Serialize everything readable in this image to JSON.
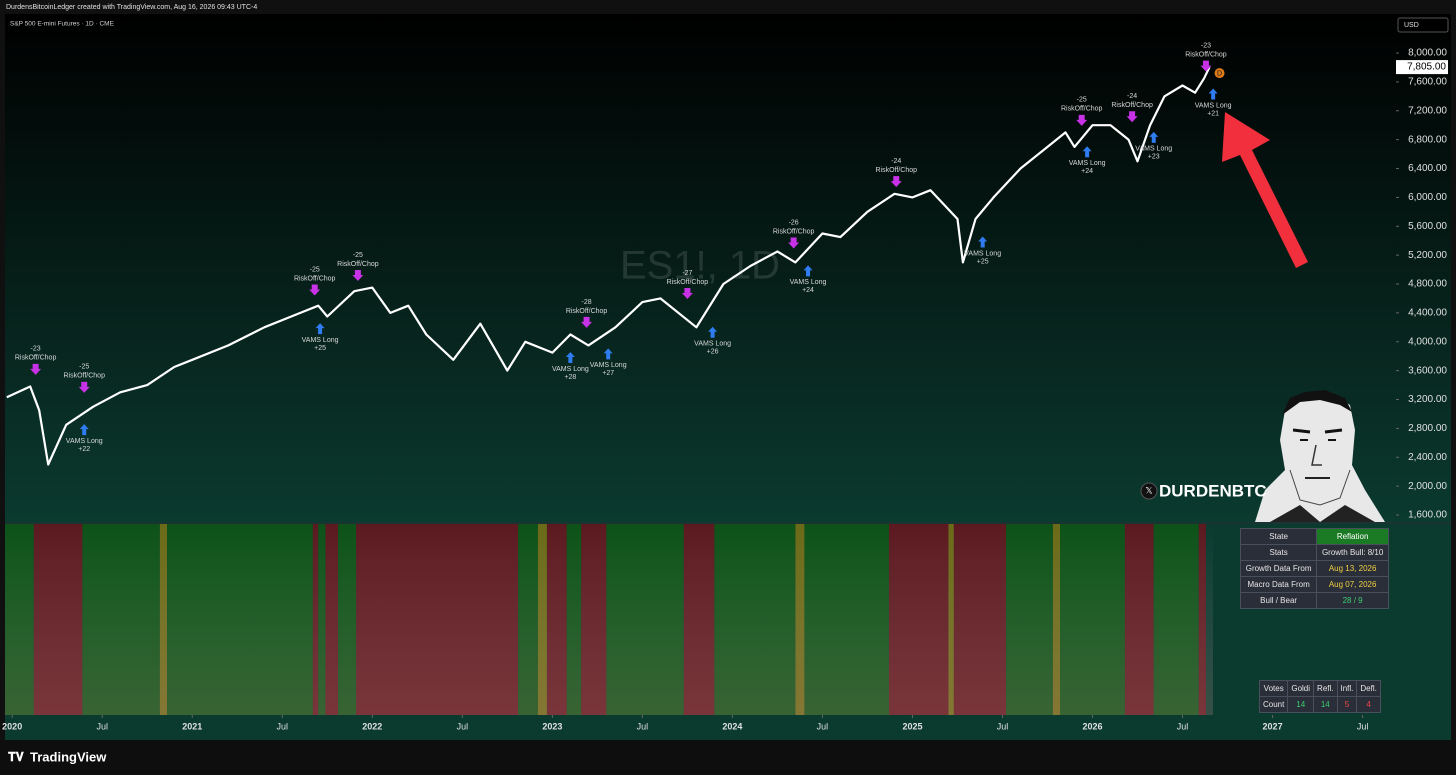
{
  "header": "DurdensBitcoinLedger created with TradingView.com, Aug 16, 2026 09:43 UTC-4",
  "brand": "TradingView",
  "handle": "DURDENBTC",
  "chart_data": {
    "type": "line",
    "title": "S&P 500 E-mini Futures · 1D · CME",
    "watermark": "ES1!, 1D",
    "currency": "USD",
    "color": "#ffffff",
    "x": [
      2019.97,
      2020.1,
      2020.15,
      2020.2,
      2020.3,
      2020.45,
      2020.6,
      2020.75,
      2020.9,
      2021.0,
      2021.2,
      2021.4,
      2021.6,
      2021.7,
      2021.75,
      2021.9,
      2022.0,
      2022.1,
      2022.2,
      2022.3,
      2022.45,
      2022.6,
      2022.75,
      2022.85,
      2023.0,
      2023.1,
      2023.2,
      2023.35,
      2023.5,
      2023.6,
      2023.8,
      2023.95,
      2024.1,
      2024.25,
      2024.35,
      2024.5,
      2024.6,
      2024.75,
      2024.9,
      2025.0,
      2025.1,
      2025.25,
      2025.28,
      2025.35,
      2025.45,
      2025.6,
      2025.75,
      2025.85,
      2025.9,
      2026.0,
      2026.1,
      2026.2,
      2026.25,
      2026.32,
      2026.4,
      2026.5,
      2026.57,
      2026.62,
      2026.65
    ],
    "values": [
      3230,
      3380,
      3050,
      2300,
      2850,
      3100,
      3300,
      3400,
      3650,
      3750,
      3950,
      4200,
      4400,
      4500,
      4350,
      4700,
      4750,
      4400,
      4500,
      4100,
      3750,
      4250,
      3600,
      4000,
      3850,
      4100,
      3950,
      4200,
      4550,
      4600,
      4200,
      4800,
      5050,
      5250,
      5100,
      5500,
      5450,
      5800,
      6050,
      6000,
      6100,
      5700,
      5100,
      5700,
      6000,
      6400,
      6700,
      6900,
      6700,
      7000,
      7000,
      6800,
      6500,
      7000,
      7400,
      7550,
      7450,
      7650,
      7805
    ],
    "last_price": {
      "value": 7805,
      "label": "7,805.00"
    },
    "badge": "D",
    "xlim": [
      2019.96,
      2027.68
    ],
    "ylim": [
      1503,
      8319
    ],
    "xticks": [
      {
        "value": 2020,
        "label": "2020"
      },
      {
        "value": 2020.5,
        "label": "Jul"
      },
      {
        "value": 2021,
        "label": "2021"
      },
      {
        "value": 2021.5,
        "label": "Jul"
      },
      {
        "value": 2022,
        "label": "2022"
      },
      {
        "value": 2022.5,
        "label": "Jul"
      },
      {
        "value": 2023,
        "label": "2023"
      },
      {
        "value": 2023.5,
        "label": "Jul"
      },
      {
        "value": 2024,
        "label": "2024"
      },
      {
        "value": 2024.5,
        "label": "Jul"
      },
      {
        "value": 2025,
        "label": "2025"
      },
      {
        "value": 2025.5,
        "label": "Jul"
      },
      {
        "value": 2026,
        "label": "2026"
      },
      {
        "value": 2026.5,
        "label": "Jul"
      },
      {
        "value": 2027,
        "label": "2027"
      },
      {
        "value": 2027.5,
        "label": "Jul"
      }
    ],
    "yticks": [
      {
        "value": 1600,
        "label": "1,600.00"
      },
      {
        "value": 2000,
        "label": "2,000.00"
      },
      {
        "value": 2400,
        "label": "2,400.00"
      },
      {
        "value": 2800,
        "label": "2,800.00"
      },
      {
        "value": 3200,
        "label": "3,200.00"
      },
      {
        "value": 3600,
        "label": "3,600.00"
      },
      {
        "value": 4000,
        "label": "4,000.00"
      },
      {
        "value": 4400,
        "label": "4,400.00"
      },
      {
        "value": 4800,
        "label": "4,800.00"
      },
      {
        "value": 5200,
        "label": "5,200.00"
      },
      {
        "value": 5600,
        "label": "5,600.00"
      },
      {
        "value": 6000,
        "label": "6,000.00"
      },
      {
        "value": 6400,
        "label": "6,400.00"
      },
      {
        "value": 6800,
        "label": "6,800.00"
      },
      {
        "value": 7200,
        "label": "7,200.00"
      },
      {
        "value": 7600,
        "label": "7,600.00"
      },
      {
        "value": 8000,
        "label": "8,000.00"
      }
    ],
    "signals": [
      {
        "x": 2020.13,
        "value": 3500,
        "label": "RiskOff/Chop",
        "score": "-23"
      },
      {
        "x": 2020.4,
        "value": 3250,
        "label": "RiskOff/Chop",
        "score": "-25"
      },
      {
        "x": 2020.4,
        "value": 2900,
        "label": "VAMS Long",
        "score": "+22"
      },
      {
        "x": 2021.68,
        "value": 4600,
        "label": "RiskOff/Chop",
        "score": "-25"
      },
      {
        "x": 2021.71,
        "value": 4300,
        "label": "VAMS Long",
        "score": "+25"
      },
      {
        "x": 2021.92,
        "value": 4800,
        "label": "RiskOff/Chop",
        "score": "-25"
      },
      {
        "x": 2023.1,
        "value": 3900,
        "label": "VAMS Long",
        "score": "+28"
      },
      {
        "x": 2023.19,
        "value": 4150,
        "label": "RiskOff/Chop",
        "score": "-28"
      },
      {
        "x": 2023.31,
        "value": 3950,
        "label": "VAMS Long",
        "score": "+27"
      },
      {
        "x": 2023.75,
        "value": 4550,
        "label": "RiskOff/Chop",
        "score": "-27"
      },
      {
        "x": 2023.89,
        "value": 4250,
        "label": "VAMS Long",
        "score": "+26"
      },
      {
        "x": 2024.34,
        "value": 5250,
        "label": "RiskOff/Chop",
        "score": "-26"
      },
      {
        "x": 2024.42,
        "value": 5100,
        "label": "VAMS Long",
        "score": "+24"
      },
      {
        "x": 2024.91,
        "value": 6100,
        "label": "RiskOff/Chop",
        "score": "-24"
      },
      {
        "x": 2025.39,
        "value": 5500,
        "label": "VAMS Long",
        "score": "+25"
      },
      {
        "x": 2025.94,
        "value": 6950,
        "label": "RiskOff/Chop",
        "score": "-25"
      },
      {
        "x": 2025.97,
        "value": 6750,
        "label": "VAMS Long",
        "score": "+24"
      },
      {
        "x": 2026.22,
        "value": 7000,
        "label": "RiskOff/Chop",
        "score": "-24"
      },
      {
        "x": 2026.34,
        "value": 6950,
        "label": "VAMS Long",
        "score": "+23"
      },
      {
        "x": 2026.63,
        "value": 7700,
        "label": "RiskOff/Chop",
        "score": "-23"
      },
      {
        "x": 2026.67,
        "value": 7550,
        "label": "VAMS Long",
        "score": "+21"
      }
    ],
    "signal_colors": {
      "RiskOff/Chop": "#c832e6",
      "VAMS Long": "#2f7cf0"
    },
    "regime_bands": [
      {
        "from": 2019.96,
        "to": 2020.12,
        "color": "#0d5218"
      },
      {
        "from": 2020.12,
        "to": 2020.39,
        "color": "#5c1a20"
      },
      {
        "from": 2020.39,
        "to": 2020.82,
        "color": "#0d5218"
      },
      {
        "from": 2020.82,
        "to": 2020.86,
        "color": "#6a6a18"
      },
      {
        "from": 2020.86,
        "to": 2021.67,
        "color": "#0d5218"
      },
      {
        "from": 2021.67,
        "to": 2021.7,
        "color": "#5c1a20"
      },
      {
        "from": 2021.7,
        "to": 2021.74,
        "color": "#0d5218"
      },
      {
        "from": 2021.74,
        "to": 2021.81,
        "color": "#5c1a20"
      },
      {
        "from": 2021.81,
        "to": 2021.91,
        "color": "#0d5218"
      },
      {
        "from": 2021.91,
        "to": 2022.81,
        "color": "#5c1a20"
      },
      {
        "from": 2022.81,
        "to": 2022.92,
        "color": "#0d5218"
      },
      {
        "from": 2022.92,
        "to": 2022.97,
        "color": "#6a6a18"
      },
      {
        "from": 2022.97,
        "to": 2023.08,
        "color": "#5c1a20"
      },
      {
        "from": 2023.08,
        "to": 2023.16,
        "color": "#0d5218"
      },
      {
        "from": 2023.16,
        "to": 2023.3,
        "color": "#5c1a20"
      },
      {
        "from": 2023.3,
        "to": 2023.73,
        "color": "#0d5218"
      },
      {
        "from": 2023.73,
        "to": 2023.9,
        "color": "#5c1a20"
      },
      {
        "from": 2023.9,
        "to": 2024.35,
        "color": "#0d5218"
      },
      {
        "from": 2024.35,
        "to": 2024.4,
        "color": "#6a6a18"
      },
      {
        "from": 2024.4,
        "to": 2024.87,
        "color": "#0d5218"
      },
      {
        "from": 2024.87,
        "to": 2025.2,
        "color": "#5c1a20"
      },
      {
        "from": 2025.2,
        "to": 2025.23,
        "color": "#6a6a18"
      },
      {
        "from": 2025.23,
        "to": 2025.52,
        "color": "#5c1a20"
      },
      {
        "from": 2025.52,
        "to": 2025.78,
        "color": "#0d5218"
      },
      {
        "from": 2025.78,
        "to": 2025.82,
        "color": "#6a6a18"
      },
      {
        "from": 2025.82,
        "to": 2026.18,
        "color": "#0d5218"
      },
      {
        "from": 2026.18,
        "to": 2026.34,
        "color": "#5c1a20"
      },
      {
        "from": 2026.34,
        "to": 2026.59,
        "color": "#0d5218"
      },
      {
        "from": 2026.59,
        "to": 2026.63,
        "color": "#5c1a20"
      }
    ]
  },
  "status_table": {
    "rows": [
      [
        "State",
        "Reflation"
      ],
      [
        "Stats",
        "Growth Bull: 8/10"
      ],
      [
        "Growth Data From",
        "Aug 13, 2026"
      ],
      [
        "Macro Data From",
        "Aug 07, 2026"
      ],
      [
        "Bull / Bear",
        "28 / 9"
      ]
    ]
  },
  "votes_table": {
    "rows": [
      [
        "Votes",
        "Goldi",
        "Refl.",
        "Infl.",
        "Defl."
      ],
      [
        "Count",
        "14",
        "14",
        "5",
        "4"
      ]
    ]
  }
}
